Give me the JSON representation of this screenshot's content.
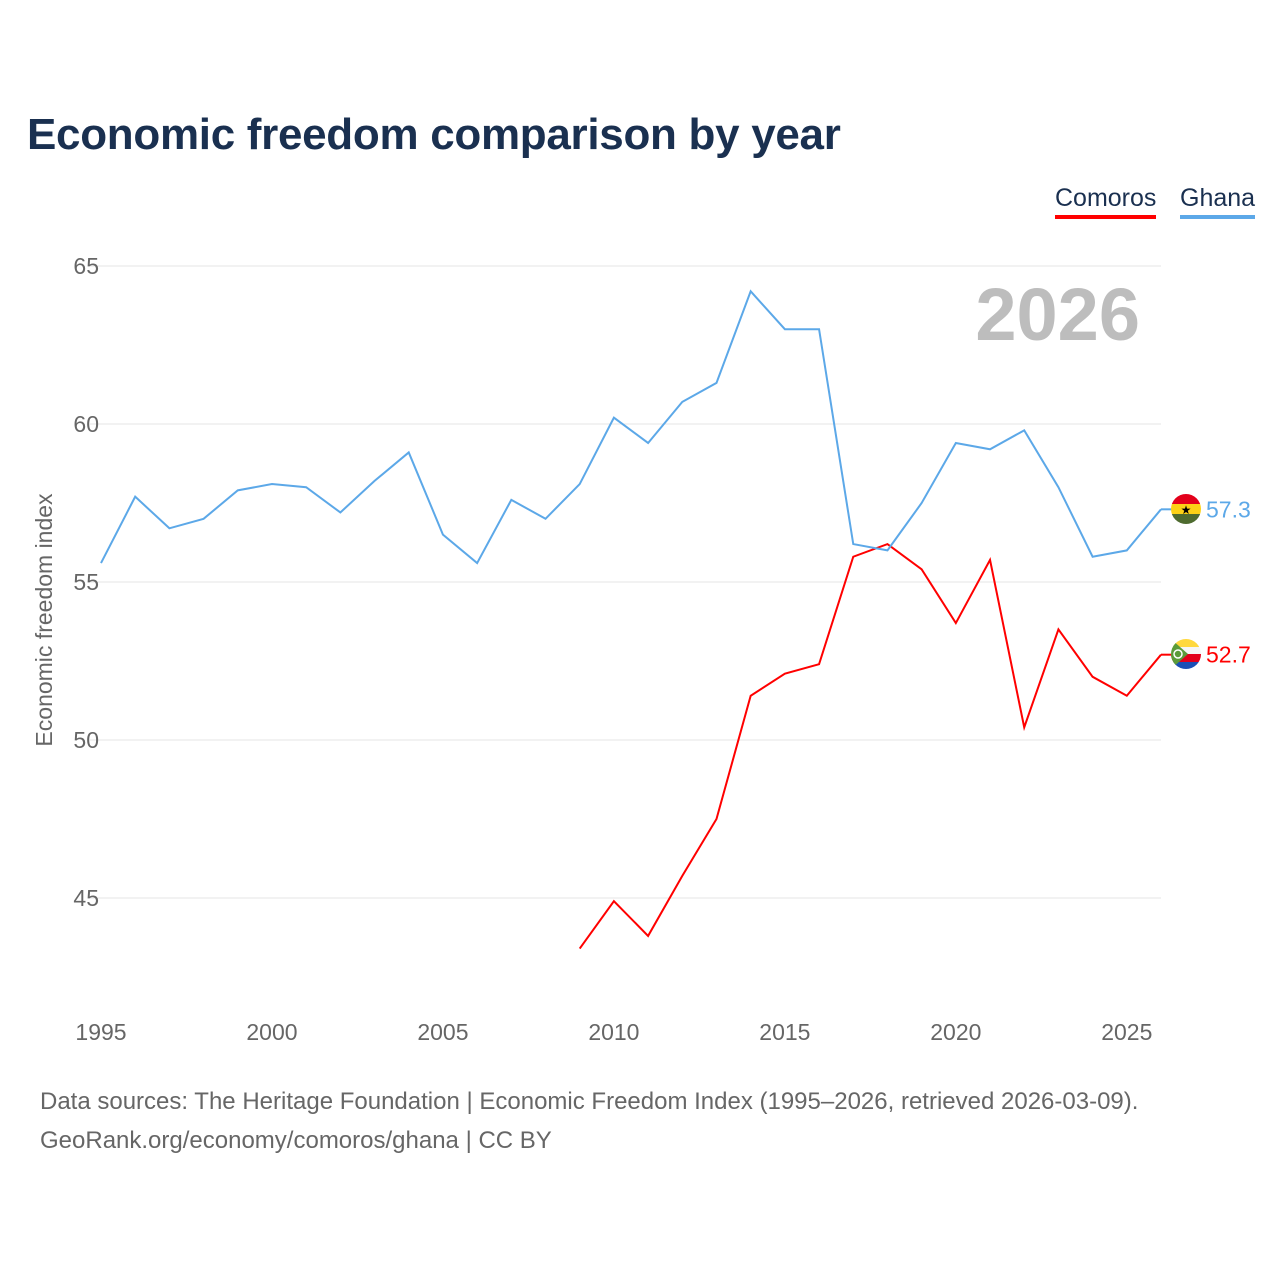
{
  "chart_data": {
    "type": "line",
    "title": "Economic freedom comparison by year",
    "ylabel": "Economic freedom index",
    "xlabel": "",
    "xlim": [
      1995,
      2026
    ],
    "ylim": [
      41.5,
      66
    ],
    "grid": true,
    "legend_position": "top-right",
    "watermark_year": "2026",
    "x_ticks": [
      1995,
      2000,
      2005,
      2010,
      2015,
      2020,
      2025
    ],
    "y_ticks": [
      45,
      50,
      55,
      60,
      65
    ],
    "series": [
      {
        "name": "Comoros",
        "color": "#ff0000",
        "flag": "comoros-flag",
        "x": [
          2009,
          2010,
          2011,
          2012,
          2013,
          2014,
          2015,
          2016,
          2017,
          2018,
          2019,
          2020,
          2021,
          2022,
          2023,
          2024,
          2025,
          2026
        ],
        "values": [
          43.4,
          44.9,
          43.8,
          45.7,
          47.5,
          51.4,
          52.1,
          52.4,
          55.8,
          56.2,
          55.4,
          53.7,
          55.7,
          50.4,
          53.5,
          52.0,
          51.4,
          52.7
        ],
        "end_label": "52.7"
      },
      {
        "name": "Ghana",
        "color": "#5ca8e8",
        "flag": "ghana-flag",
        "x": [
          1995,
          1996,
          1997,
          1998,
          1999,
          2000,
          2001,
          2002,
          2003,
          2004,
          2005,
          2006,
          2007,
          2008,
          2009,
          2010,
          2011,
          2012,
          2013,
          2014,
          2015,
          2016,
          2017,
          2018,
          2019,
          2020,
          2021,
          2022,
          2023,
          2024,
          2025,
          2026
        ],
        "values": [
          55.6,
          57.7,
          56.7,
          57.0,
          57.9,
          58.1,
          58.0,
          57.2,
          58.2,
          59.1,
          56.5,
          55.6,
          57.6,
          57.0,
          58.1,
          60.2,
          59.4,
          60.7,
          61.3,
          64.2,
          63.0,
          63.0,
          56.2,
          56.0,
          57.5,
          59.4,
          59.2,
          59.8,
          58.0,
          55.8,
          56.0,
          57.3
        ],
        "end_label": "57.3"
      }
    ]
  },
  "legend": {
    "comoros": "Comoros",
    "ghana": "Ghana"
  },
  "footer": {
    "line1": "Data sources: The Heritage Foundation | Economic Freedom Index (1995–2026, retrieved 2026-03-09).",
    "line2": "GeoRank.org/economy/comoros/ghana | CC BY"
  }
}
